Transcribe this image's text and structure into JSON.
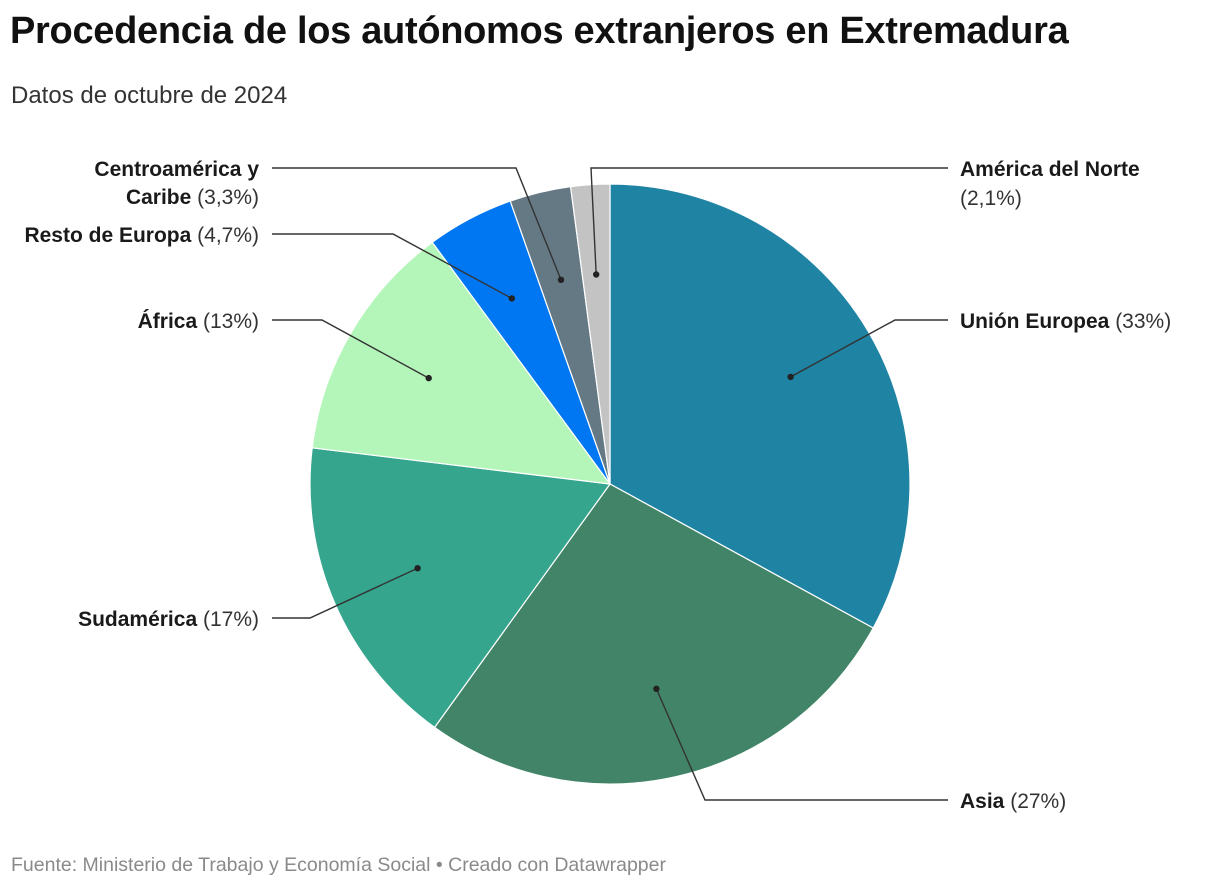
{
  "header": {
    "title": "Procedencia de los autónomos extranjeros en Extremadura",
    "subtitle": "Datos de octubre de 2024"
  },
  "footer": {
    "text": "Fuente: Ministerio de Trabajo y Economía Social • Creado con Datawrapper"
  },
  "chart_data": {
    "type": "pie",
    "title": "Procedencia de los autónomos extranjeros en Extremadura",
    "subtitle": "Datos de octubre de 2024",
    "slices": [
      {
        "label": "Unión Europea",
        "value": 33,
        "value_label": "(33%)",
        "color": "#1f83a3"
      },
      {
        "label": "Asia",
        "value": 27,
        "value_label": "(27%)",
        "color": "#418467"
      },
      {
        "label": "Sudamérica",
        "value": 17,
        "value_label": "(17%)",
        "color": "#36a58d"
      },
      {
        "label": "África",
        "value": 13,
        "value_label": "(13%)",
        "color": "#b4f6b9"
      },
      {
        "label": "Resto de Europa",
        "value": 4.7,
        "value_label": "(4,7%)",
        "color": "#0077f2"
      },
      {
        "label": "Centroamérica y Caribe",
        "value": 3.3,
        "value_label": "(3,3%)",
        "color": "#657985",
        "label_lines": [
          "Centroamérica y",
          "Caribe"
        ]
      },
      {
        "label": "América del Norte",
        "value": 2.1,
        "value_label": "(2,1%)",
        "color": "#c3c3c3"
      }
    ],
    "legend": "none"
  }
}
